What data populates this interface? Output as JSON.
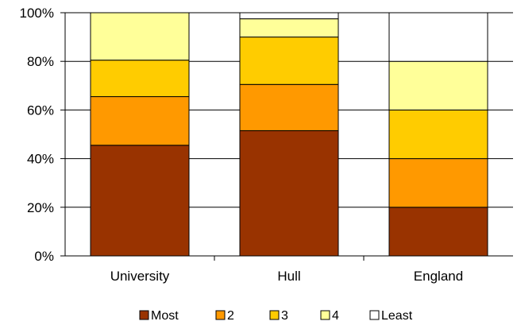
{
  "chart_data": {
    "type": "bar",
    "stacked": true,
    "percent": true,
    "categories": [
      "University",
      "Hull",
      "England"
    ],
    "series": [
      {
        "name": "Most",
        "color": "#993300",
        "values": [
          45.5,
          51.5,
          20
        ]
      },
      {
        "name": "2",
        "color": "#ff9900",
        "values": [
          20,
          19,
          20
        ]
      },
      {
        "name": "3",
        "color": "#ffcc00",
        "values": [
          15,
          19.5,
          20
        ]
      },
      {
        "name": "4",
        "color": "#ffff99",
        "values": [
          19.5,
          7.5,
          20
        ]
      },
      {
        "name": "Least",
        "color": "#ffffff",
        "values": [
          0,
          2.5,
          20
        ]
      }
    ],
    "yticks": [
      "0%",
      "20%",
      "40%",
      "60%",
      "80%",
      "100%"
    ],
    "ylim": [
      0,
      100
    ],
    "grid": true,
    "legend_position": "bottom",
    "xlabel": "",
    "ylabel": "",
    "title": ""
  }
}
